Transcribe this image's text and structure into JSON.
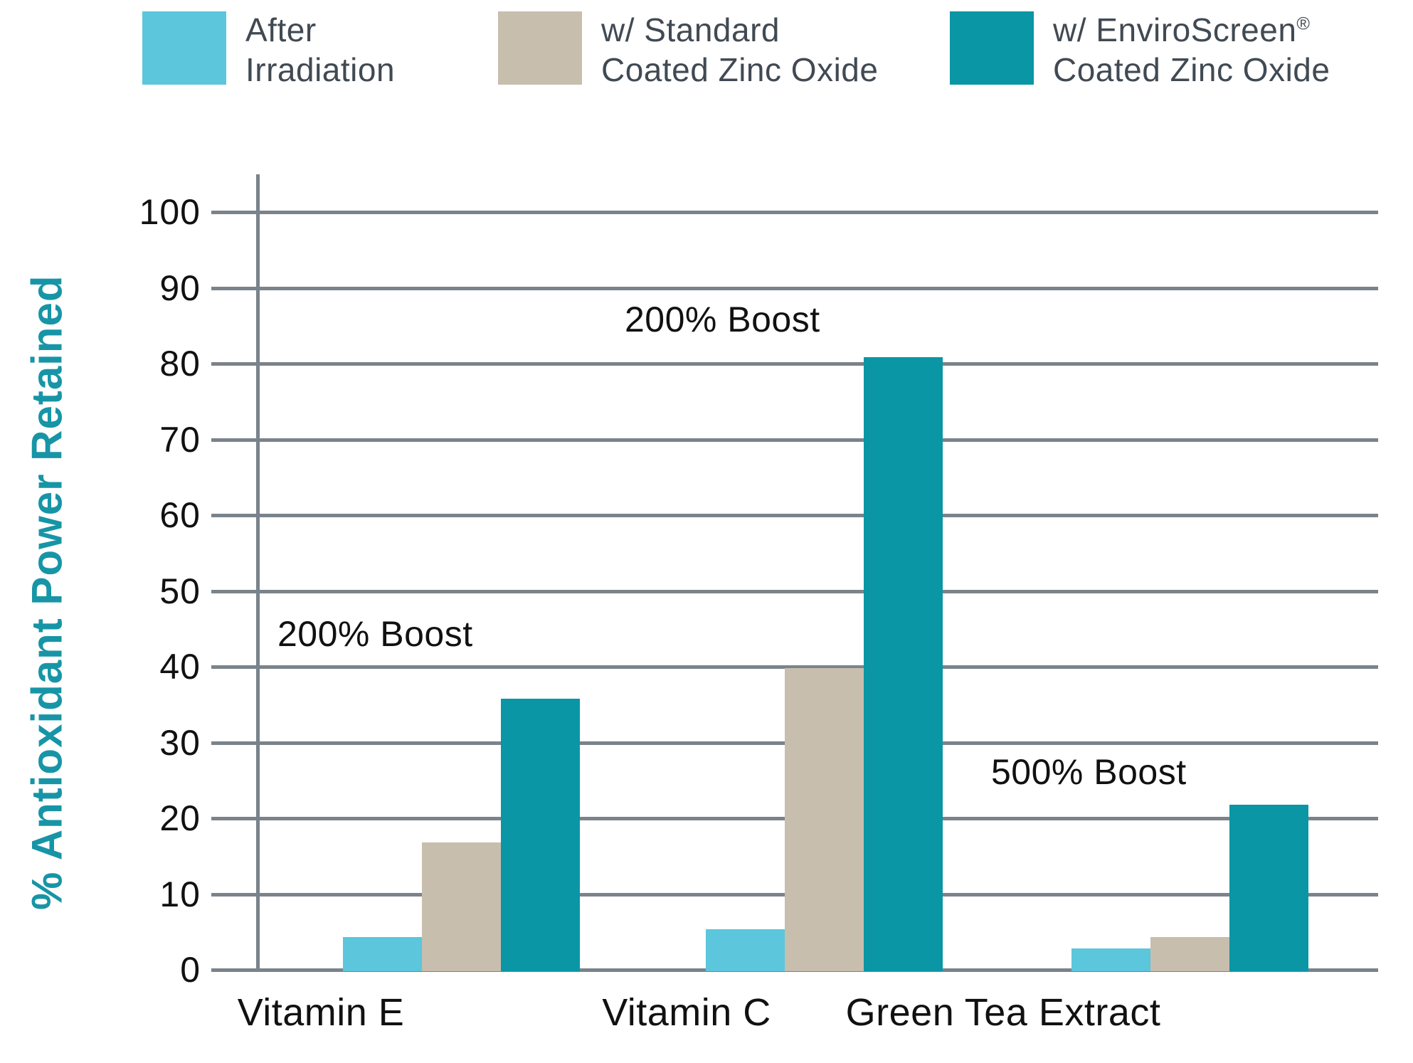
{
  "chart_data": {
    "type": "bar",
    "title": "",
    "categories": [
      "Vitamin E",
      "Vitamin C",
      "Green Tea Extract"
    ],
    "series": [
      {
        "name": "After Irradiation",
        "color": "#5BC6DC",
        "values": [
          4.5,
          5.5,
          3
        ]
      },
      {
        "name": "w/ Standard Coated Zinc Oxide",
        "color": "#C8BEAE",
        "values": [
          17,
          40,
          4.5
        ]
      },
      {
        "name": "w/ EnviroScreen® Coated Zinc Oxide",
        "color": "#0A96A5",
        "values": [
          36,
          81,
          22
        ]
      }
    ],
    "xlabel": "",
    "ylabel": "% Antioxidant Power Retained",
    "ylim": [
      0,
      100
    ],
    "yticks": [
      0,
      10,
      20,
      30,
      40,
      50,
      60,
      70,
      80,
      90,
      100
    ],
    "grid": true,
    "legend_position": "top",
    "annotations": [
      {
        "text": "200% Boost",
        "category": "Vitamin E",
        "y_value": 44
      },
      {
        "text": "200% Boost",
        "category": "Vitamin C",
        "y_value": 86
      },
      {
        "text": "500% Boost",
        "category": "Green Tea Extract",
        "y_value": 27
      }
    ]
  },
  "legend": {
    "items": [
      {
        "line1": "After",
        "mark": "",
        "line2": "Irradiation",
        "color": "#5BC6DC"
      },
      {
        "line1": "w/ Standard",
        "mark": "",
        "line2": "Coated Zinc Oxide",
        "color": "#C8BEAE"
      },
      {
        "line1": "w/ EnviroScreen",
        "mark": "®",
        "line2": "Coated Zinc Oxide",
        "color": "#0A96A5"
      }
    ]
  },
  "colors": {
    "grid": "#7A838B",
    "axis_text": "#111111",
    "y_title": "#1795A6",
    "legend_text": "#414A53"
  }
}
